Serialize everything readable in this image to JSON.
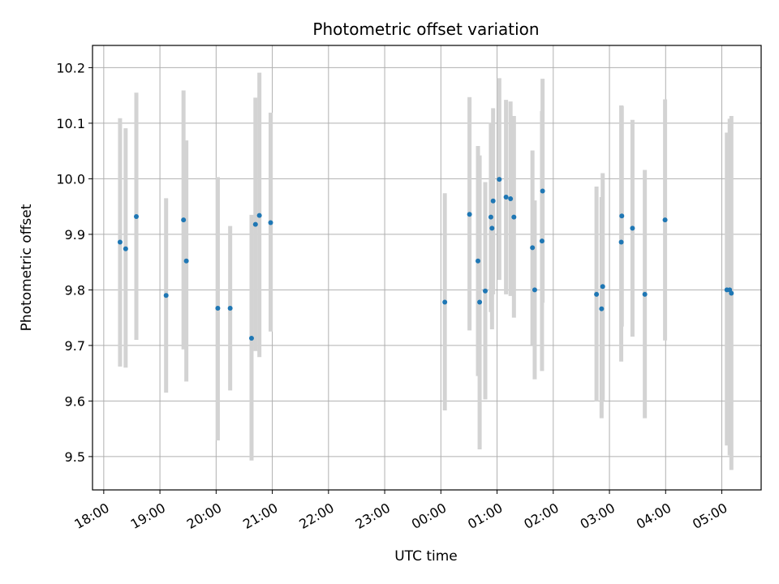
{
  "chart_data": {
    "type": "scatter",
    "title": "Photometric offset variation",
    "xlabel": "UTC time",
    "ylabel": "Photometric offset",
    "x_ticks": [
      "18:00",
      "19:00",
      "20:00",
      "21:00",
      "22:00",
      "23:00",
      "00:00",
      "01:00",
      "02:00",
      "03:00",
      "04:00",
      "05:00"
    ],
    "y_ticks": [
      "9.5",
      "9.6",
      "9.7",
      "9.8",
      "9.9",
      "10.0",
      "10.1",
      "10.2"
    ],
    "xlim_hours": [
      17.8,
      29.7
    ],
    "ylim": [
      9.44,
      10.24
    ],
    "grid": true,
    "colors": {
      "point": "#1f77b4",
      "errorbar": "#d3d3d3",
      "grid": "#b0b0b0"
    },
    "points": [
      {
        "x": 18.29,
        "y": 9.886,
        "ylow": 9.662,
        "yhigh": 10.109
      },
      {
        "x": 18.39,
        "y": 9.874,
        "ylow": 9.66,
        "yhigh": 10.091
      },
      {
        "x": 18.58,
        "y": 9.932,
        "ylow": 9.71,
        "yhigh": 10.155
      },
      {
        "x": 19.11,
        "y": 9.79,
        "ylow": 9.615,
        "yhigh": 9.965
      },
      {
        "x": 19.42,
        "y": 9.926,
        "ylow": 9.693,
        "yhigh": 10.159
      },
      {
        "x": 19.47,
        "y": 9.852,
        "ylow": 9.635,
        "yhigh": 10.069
      },
      {
        "x": 20.03,
        "y": 9.767,
        "ylow": 9.529,
        "yhigh": 10.003
      },
      {
        "x": 20.25,
        "y": 9.767,
        "ylow": 9.619,
        "yhigh": 9.915
      },
      {
        "x": 20.63,
        "y": 9.713,
        "ylow": 9.493,
        "yhigh": 9.935
      },
      {
        "x": 20.7,
        "y": 9.918,
        "ylow": 9.69,
        "yhigh": 10.146
      },
      {
        "x": 20.77,
        "y": 9.934,
        "ylow": 9.679,
        "yhigh": 10.191
      },
      {
        "x": 20.97,
        "y": 9.921,
        "ylow": 9.725,
        "yhigh": 10.119
      },
      {
        "x": 24.07,
        "y": 9.778,
        "ylow": 9.583,
        "yhigh": 9.974
      },
      {
        "x": 24.51,
        "y": 9.936,
        "ylow": 9.727,
        "yhigh": 10.147
      },
      {
        "x": 24.66,
        "y": 9.852,
        "ylow": 9.645,
        "yhigh": 10.059
      },
      {
        "x": 24.69,
        "y": 9.778,
        "ylow": 9.513,
        "yhigh": 10.042
      },
      {
        "x": 24.79,
        "y": 9.798,
        "ylow": 9.603,
        "yhigh": 9.994
      },
      {
        "x": 24.89,
        "y": 9.931,
        "ylow": 9.76,
        "yhigh": 10.101
      },
      {
        "x": 24.91,
        "y": 9.911,
        "ylow": 9.729,
        "yhigh": 10.093
      },
      {
        "x": 24.93,
        "y": 9.96,
        "ylow": 9.792,
        "yhigh": 10.127
      },
      {
        "x": 25.04,
        "y": 9.999,
        "ylow": 9.818,
        "yhigh": 10.181
      },
      {
        "x": 25.16,
        "y": 9.967,
        "ylow": 9.792,
        "yhigh": 10.142
      },
      {
        "x": 25.24,
        "y": 9.964,
        "ylow": 9.789,
        "yhigh": 10.139
      },
      {
        "x": 25.3,
        "y": 9.931,
        "ylow": 9.75,
        "yhigh": 10.113
      },
      {
        "x": 25.63,
        "y": 9.876,
        "ylow": 9.701,
        "yhigh": 10.051
      },
      {
        "x": 25.67,
        "y": 9.8,
        "ylow": 9.639,
        "yhigh": 9.961
      },
      {
        "x": 25.8,
        "y": 9.888,
        "ylow": 9.654,
        "yhigh": 10.122
      },
      {
        "x": 25.81,
        "y": 9.978,
        "ylow": 9.777,
        "yhigh": 10.18
      },
      {
        "x": 26.77,
        "y": 9.792,
        "ylow": 9.599,
        "yhigh": 9.986
      },
      {
        "x": 26.86,
        "y": 9.766,
        "ylow": 9.569,
        "yhigh": 9.967
      },
      {
        "x": 26.88,
        "y": 9.806,
        "ylow": 9.601,
        "yhigh": 10.01
      },
      {
        "x": 27.21,
        "y": 9.886,
        "ylow": 9.671,
        "yhigh": 10.132
      },
      {
        "x": 27.22,
        "y": 9.933,
        "ylow": 9.734,
        "yhigh": 10.131
      },
      {
        "x": 27.41,
        "y": 9.911,
        "ylow": 9.716,
        "yhigh": 10.106
      },
      {
        "x": 27.63,
        "y": 9.792,
        "ylow": 9.569,
        "yhigh": 10.016
      },
      {
        "x": 27.99,
        "y": 9.926,
        "ylow": 9.709,
        "yhigh": 10.143
      },
      {
        "x": 29.09,
        "y": 9.8,
        "ylow": 9.52,
        "yhigh": 10.083
      },
      {
        "x": 29.14,
        "y": 9.8,
        "ylow": 9.502,
        "yhigh": 10.108
      },
      {
        "x": 29.17,
        "y": 9.794,
        "ylow": 9.476,
        "yhigh": 10.113
      }
    ]
  }
}
